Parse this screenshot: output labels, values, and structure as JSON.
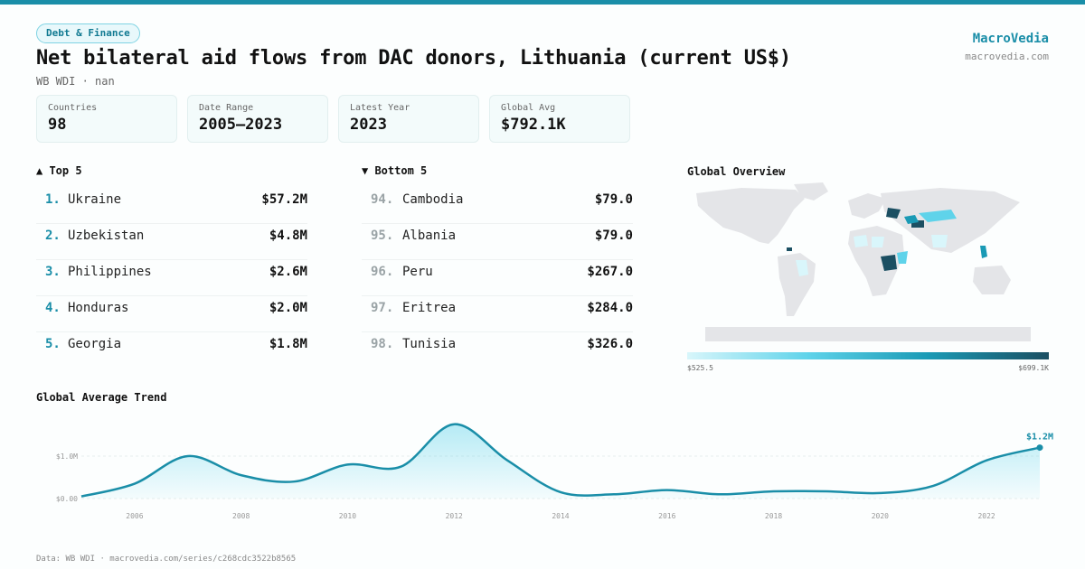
{
  "header": {
    "badge": "Debt & Finance",
    "title": "Net bilateral aid flows from DAC donors, Lithuania (current US$)",
    "subtitle": "WB WDI · nan",
    "brand": "MacroVedia",
    "brand_url": "macrovedia.com"
  },
  "stats": [
    {
      "label": "Countries",
      "value": "98"
    },
    {
      "label": "Date Range",
      "value": "2005–2023"
    },
    {
      "label": "Latest Year",
      "value": "2023"
    },
    {
      "label": "Global Avg",
      "value": "$792.1K"
    }
  ],
  "top5": {
    "heading": "▲ Top 5",
    "items": [
      {
        "rank": "1.",
        "name": "Ukraine",
        "value": "$57.2M"
      },
      {
        "rank": "2.",
        "name": "Uzbekistan",
        "value": "$4.8M"
      },
      {
        "rank": "3.",
        "name": "Philippines",
        "value": "$2.6M"
      },
      {
        "rank": "4.",
        "name": "Honduras",
        "value": "$2.0M"
      },
      {
        "rank": "5.",
        "name": "Georgia",
        "value": "$1.8M"
      }
    ]
  },
  "bottom5": {
    "heading": "▼ Bottom 5",
    "items": [
      {
        "rank": "94.",
        "name": "Cambodia",
        "value": "$79.0"
      },
      {
        "rank": "95.",
        "name": "Albania",
        "value": "$79.0"
      },
      {
        "rank": "96.",
        "name": "Peru",
        "value": "$267.0"
      },
      {
        "rank": "97.",
        "name": "Eritrea",
        "value": "$284.0"
      },
      {
        "rank": "98.",
        "name": "Tunisia",
        "value": "$326.0"
      }
    ]
  },
  "map": {
    "heading": "Global Overview",
    "legend_min": "$525.5",
    "legend_max": "$699.1K",
    "colors": {
      "base": "#e4e5e8",
      "light": "#d9f6fb",
      "mid": "#5fd3ea",
      "deep": "#1a9ab5",
      "darkest": "#1b4f62"
    }
  },
  "trend": {
    "heading": "Global Average Trend",
    "last_label": "$1.2M",
    "accent": "#1a8ea8"
  },
  "chart_data": {
    "type": "area",
    "title": "Global Average Trend",
    "x": [
      2005,
      2006,
      2007,
      2008,
      2009,
      2010,
      2011,
      2012,
      2013,
      2014,
      2015,
      2016,
      2017,
      2018,
      2019,
      2020,
      2021,
      2022,
      2023
    ],
    "values": [
      0.05,
      0.35,
      1.0,
      0.55,
      0.4,
      0.8,
      0.75,
      1.75,
      0.9,
      0.15,
      0.1,
      0.2,
      0.1,
      0.17,
      0.17,
      0.13,
      0.3,
      0.9,
      1.2
    ],
    "y_unit": "$M",
    "yticks": [
      {
        "v": 0,
        "label": "$0.00"
      },
      {
        "v": 1,
        "label": "$1.0M"
      }
    ],
    "xticks": [
      2006,
      2008,
      2010,
      2012,
      2014,
      2016,
      2018,
      2020,
      2022
    ],
    "ylim": [
      0,
      1.85
    ]
  },
  "footer": "Data: WB WDI · macrovedia.com/series/c268cdc3522b8565"
}
